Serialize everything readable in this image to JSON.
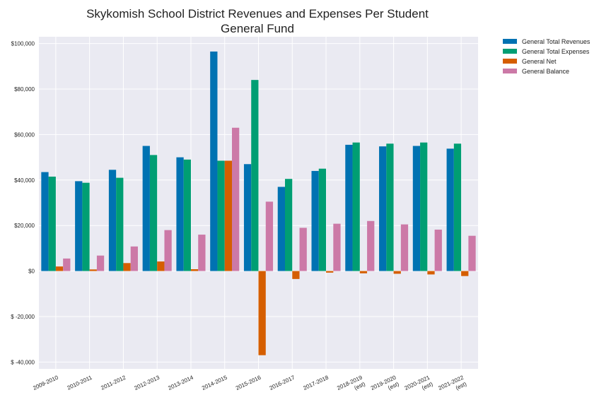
{
  "chart_data": {
    "type": "bar",
    "title": "Skykomish School District Revenues and Expenses Per Student",
    "subtitle": "General Fund",
    "categories": [
      [
        "2009-2010"
      ],
      [
        "2010-2011"
      ],
      [
        "2011-2012"
      ],
      [
        "2012-2013"
      ],
      [
        "2013-2014"
      ],
      [
        "2014-2015"
      ],
      [
        "2015-2016"
      ],
      [
        "2016-2017"
      ],
      [
        "2017-2018"
      ],
      [
        "2018-2019",
        "(est)"
      ],
      [
        "2019-2020",
        "(est)"
      ],
      [
        "2020-2021",
        "(est)"
      ],
      [
        "2021-2022",
        "(est)"
      ]
    ],
    "series": [
      {
        "name": "General Total Revenues",
        "color": "#0072b2",
        "values": [
          43500,
          39500,
          44500,
          55000,
          50000,
          96500,
          47000,
          37000,
          44000,
          55500,
          54800,
          55000,
          53800
        ]
      },
      {
        "name": "General Total Expenses",
        "color": "#009e73",
        "values": [
          41500,
          38800,
          41000,
          51000,
          49000,
          48500,
          84000,
          40500,
          45000,
          56500,
          56000,
          56500,
          56000
        ]
      },
      {
        "name": "General Net",
        "color": "#d55e00",
        "values": [
          2000,
          700,
          3500,
          4200,
          800,
          48500,
          -37000,
          -3500,
          -700,
          -1000,
          -1200,
          -1500,
          -2200
        ]
      },
      {
        "name": "General Balance",
        "color": "#cc79a7",
        "values": [
          5500,
          6800,
          10800,
          18000,
          16000,
          63000,
          30500,
          19000,
          20800,
          22000,
          20500,
          18200,
          15500
        ]
      }
    ],
    "ylim": [
      -43000,
      103000
    ],
    "yticks": [
      {
        "value": 100000,
        "label": "$100,000"
      },
      {
        "value": 80000,
        "label": "$80,000"
      },
      {
        "value": 60000,
        "label": "$60,000"
      },
      {
        "value": 40000,
        "label": "$40,000"
      },
      {
        "value": 20000,
        "label": "$20,000"
      },
      {
        "value": 0,
        "label": "$0"
      },
      {
        "value": -20000,
        "label": "$ -20,000"
      },
      {
        "value": -40000,
        "label": "$ -40,000"
      }
    ],
    "grid": true,
    "legend": "upper-right-outside",
    "colors": {
      "plot_background": "#eaeaf2",
      "grid": "#ffffff"
    }
  }
}
